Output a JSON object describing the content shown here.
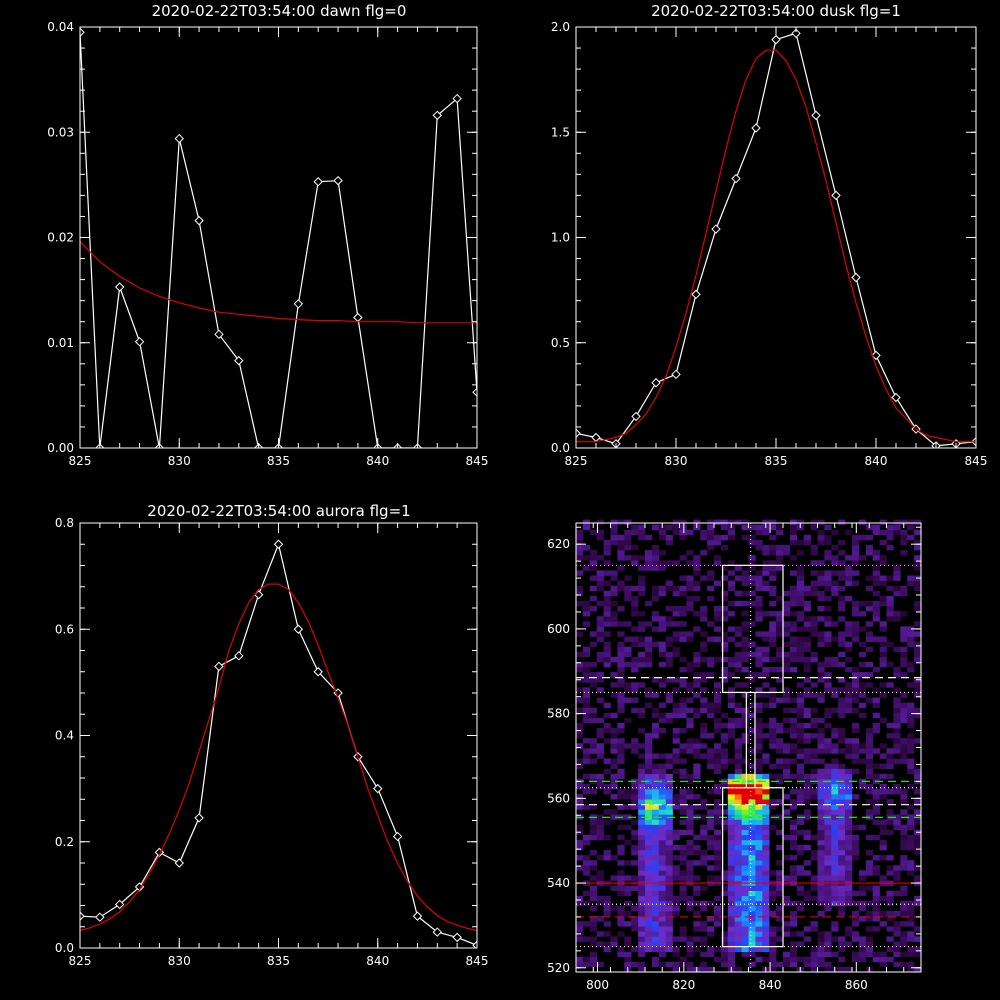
{
  "chart_data": [
    {
      "type": "line",
      "title": "2020-02-22T03:54:00 dawn flg=0",
      "xlim": [
        825,
        845
      ],
      "ylim": [
        0,
        0.04
      ],
      "xticks": [
        825,
        830,
        835,
        840,
        845
      ],
      "xtick_labels": [
        "825",
        "830",
        "835",
        "840",
        "845"
      ],
      "yticks": [
        0,
        0.01,
        0.02,
        0.03,
        0.04
      ],
      "ytick_labels": [
        "0.00",
        "0.01",
        "0.02",
        "0.03",
        "0.04"
      ],
      "series": [
        {
          "color": "#ffffff",
          "marker": "diamond",
          "x": [
            825,
            826,
            827,
            828,
            829,
            830,
            831,
            832,
            833,
            834,
            835,
            836,
            837,
            838,
            839,
            840,
            841,
            842,
            843,
            844,
            845
          ],
          "y": [
            0.0395,
            0,
            0.0153,
            0.0101,
            0,
            0.0294,
            0.0216,
            0.0108,
            0.0083,
            0,
            0,
            0.0137,
            0.0253,
            0.0254,
            0.0124,
            0,
            0,
            0,
            0.0316,
            0.0332,
            0.0053
          ]
        },
        {
          "color": "#e00000",
          "marker": "none",
          "x": [
            825,
            826,
            827,
            828,
            829,
            830,
            831,
            832,
            833,
            834,
            835,
            836,
            837,
            838,
            839,
            840,
            841,
            842,
            843,
            844,
            845
          ],
          "y": [
            0.0196,
            0.0177,
            0.0163,
            0.0152,
            0.0144,
            0.0138,
            0.0133,
            0.0129,
            0.0127,
            0.0125,
            0.0123,
            0.0122,
            0.0121,
            0.0121,
            0.012,
            0.012,
            0.012,
            0.0119,
            0.0119,
            0.0119,
            0.0119
          ]
        }
      ]
    },
    {
      "type": "line",
      "title": "2020-02-22T03:54:00 dusk flg=1",
      "xlim": [
        825,
        845
      ],
      "ylim": [
        0,
        2.0
      ],
      "xticks": [
        825,
        830,
        835,
        840,
        845
      ],
      "xtick_labels": [
        "825",
        "830",
        "835",
        "840",
        "845"
      ],
      "yticks": [
        0,
        0.5,
        1.0,
        1.5,
        2.0
      ],
      "ytick_labels": [
        "0.0",
        "0.5",
        "1.0",
        "1.5",
        "2.0"
      ],
      "series": [
        {
          "color": "#ffffff",
          "marker": "diamond",
          "x": [
            825,
            826,
            827,
            828,
            829,
            830,
            831,
            832,
            833,
            834,
            835,
            836,
            837,
            838,
            839,
            840,
            841,
            842,
            843,
            844,
            845
          ],
          "y": [
            0.07,
            0.05,
            0.02,
            0.15,
            0.31,
            0.35,
            0.73,
            1.04,
            1.28,
            1.52,
            1.94,
            1.97,
            1.58,
            1.2,
            0.81,
            0.44,
            0.24,
            0.09,
            0.01,
            0.02,
            0.03
          ]
        },
        {
          "color": "#e00000",
          "marker": "none",
          "x": [
            825,
            825.5,
            826,
            826.5,
            827,
            827.5,
            828,
            828.5,
            829,
            829.5,
            830,
            830.5,
            831,
            831.5,
            832,
            832.5,
            833,
            833.5,
            834,
            834.5,
            835,
            835.5,
            836,
            836.5,
            837,
            837.5,
            838,
            838.5,
            839,
            839.5,
            840,
            840.5,
            841,
            841.5,
            842,
            842.5,
            843,
            843.5,
            844,
            844.5,
            845
          ],
          "y": [
            0.03,
            0.03,
            0.03,
            0.04,
            0.05,
            0.07,
            0.11,
            0.16,
            0.24,
            0.34,
            0.48,
            0.64,
            0.82,
            1.02,
            1.22,
            1.42,
            1.6,
            1.75,
            1.85,
            1.89,
            1.89,
            1.84,
            1.75,
            1.62,
            1.45,
            1.27,
            1.07,
            0.87,
            0.69,
            0.53,
            0.39,
            0.28,
            0.19,
            0.14,
            0.09,
            0.06,
            0.05,
            0.04,
            0.03,
            0.03,
            0.03
          ]
        }
      ]
    },
    {
      "type": "line",
      "title": "2020-02-22T03:54:00 aurora flg=1",
      "xlim": [
        825,
        845
      ],
      "ylim": [
        0,
        0.8
      ],
      "xticks": [
        825,
        830,
        835,
        840,
        845
      ],
      "xtick_labels": [
        "825",
        "830",
        "835",
        "840",
        "845"
      ],
      "yticks": [
        0,
        0.2,
        0.4,
        0.6,
        0.8
      ],
      "ytick_labels": [
        "0.0",
        "0.2",
        "0.4",
        "0.6",
        "0.8"
      ],
      "series": [
        {
          "color": "#ffffff",
          "marker": "diamond",
          "x": [
            825,
            826,
            827,
            828,
            829,
            830,
            831,
            832,
            833,
            834,
            835,
            836,
            837,
            838,
            839,
            840,
            841,
            842,
            843,
            844,
            845
          ],
          "y": [
            0.06,
            0.058,
            0.082,
            0.115,
            0.18,
            0.16,
            0.245,
            0.53,
            0.55,
            0.665,
            0.76,
            0.6,
            0.52,
            0.48,
            0.36,
            0.3,
            0.21,
            0.06,
            0.03,
            0.02,
            0.005
          ]
        },
        {
          "color": "#e00000",
          "marker": "none",
          "x": [
            825,
            825.5,
            826,
            826.5,
            827,
            827.5,
            828,
            828.5,
            829,
            829.5,
            830,
            830.5,
            831,
            831.5,
            832,
            832.5,
            833,
            833.5,
            834,
            834.5,
            835,
            835.5,
            836,
            836.5,
            837,
            837.5,
            838,
            838.5,
            839,
            839.5,
            840,
            840.5,
            841,
            841.5,
            842,
            842.5,
            843,
            843.5,
            844,
            844.5,
            845
          ],
          "y": [
            0.033,
            0.038,
            0.045,
            0.055,
            0.068,
            0.087,
            0.11,
            0.14,
            0.175,
            0.215,
            0.26,
            0.31,
            0.37,
            0.43,
            0.49,
            0.56,
            0.61,
            0.65,
            0.675,
            0.685,
            0.685,
            0.675,
            0.65,
            0.615,
            0.57,
            0.52,
            0.47,
            0.42,
            0.36,
            0.3,
            0.25,
            0.2,
            0.16,
            0.125,
            0.098,
            0.077,
            0.061,
            0.05,
            0.043,
            0.037,
            0.033
          ]
        }
      ]
    },
    {
      "type": "heatmap",
      "title": "",
      "xlim": [
        795,
        875
      ],
      "ylim": [
        519,
        625
      ],
      "xticks": [
        800,
        820,
        840,
        860
      ],
      "xtick_labels": [
        "800",
        "820",
        "840",
        "860"
      ],
      "yticks": [
        520,
        540,
        560,
        580,
        600,
        620
      ],
      "ytick_labels": [
        "520",
        "540",
        "560",
        "580",
        "600",
        "620"
      ],
      "colormap": [
        "#000000",
        "#3a0a55",
        "#6a2ab0",
        "#2b3cf0",
        "#1aa0ff",
        "#20e0c0",
        "#3ef03e",
        "#e8f020",
        "#ff6000",
        "#e00000"
      ],
      "emission_columns": [
        {
          "x_center": 813,
          "x_width": 8,
          "y_range": [
            524,
            566
          ],
          "peak_y": 558,
          "peak": 0.45
        },
        {
          "x_center": 835.5,
          "x_width": 10,
          "y_range": [
            524,
            566
          ],
          "peak_y": 561,
          "peak": 1.0
        },
        {
          "x_center": 855,
          "x_width": 8,
          "y_range": [
            535,
            567
          ],
          "peak_y": 561,
          "peak": 0.28
        }
      ],
      "boxes": [
        {
          "x": [
            829,
            843
          ],
          "y": [
            525,
            562.5
          ],
          "color": "#ffffff"
        },
        {
          "x": [
            829,
            843
          ],
          "y": [
            585,
            615
          ],
          "color": "#ffffff"
        }
      ],
      "connector_x": [
        834.5,
        836.5
      ],
      "vertical_dotted_x": 835.5,
      "horizontal_lines": [
        {
          "y": 615,
          "color": "#ff60ff",
          "style": "dotted"
        },
        {
          "y": 588.5,
          "color": "#ffffff",
          "style": "dashed"
        },
        {
          "y": 585,
          "color": "#ffffff",
          "style": "dotted"
        },
        {
          "y": 564,
          "color": "#20e020",
          "style": "dashed"
        },
        {
          "y": 562.5,
          "color": "#ffffff",
          "style": "dotted"
        },
        {
          "y": 558.5,
          "color": "#ffffff",
          "style": "dashed"
        },
        {
          "y": 555.5,
          "color": "#20e020",
          "style": "dashed"
        },
        {
          "y": 540,
          "color": "#e00000",
          "style": "solid"
        },
        {
          "y": 535,
          "color": "#ffffff",
          "style": "dotted"
        },
        {
          "y": 532,
          "color": "#e00000",
          "style": "dashed"
        },
        {
          "y": 525,
          "color": "#ffffff",
          "style": "dotted"
        }
      ]
    }
  ]
}
